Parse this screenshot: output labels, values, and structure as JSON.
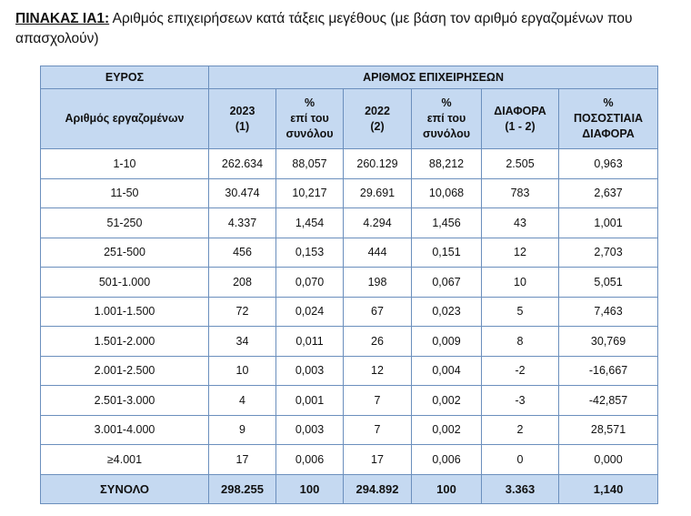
{
  "caption": {
    "code": "ΠΙΝΑΚΑΣ ΙΑ1:",
    "text": " Αριθμός επιχειρήσεων κατά τάξεις μεγέθους (με βάση τον αριθμό εργαζομένων που απασχολούν)"
  },
  "table": {
    "group_headers": {
      "range": "ΕΥΡΟΣ",
      "businesses": "ΑΡΙΘΜΟΣ ΕΠΙΧΕΙΡΗΣΕΩΝ"
    },
    "columns": {
      "employees": "Αριθμός εργαζομένων",
      "y2023_year": "2023",
      "y2023_ref": "(1)",
      "pct_label": "%",
      "pct_sub1": "επί του",
      "pct_sub2": "συνόλου",
      "y2022_year": "2022",
      "y2022_ref": "(2)",
      "diff_label": "ΔΙΑΦΟΡΑ",
      "diff_ref": "(1 - 2)",
      "pctdiff_label": "%",
      "pctdiff_sub1": "ΠΟΣΟΣΤΙΑΙΑ",
      "pctdiff_sub2": "ΔΙΑΦΟΡΑ"
    },
    "rows": [
      [
        "1-10",
        "262.634",
        "88,057",
        "260.129",
        "88,212",
        "2.505",
        "0,963"
      ],
      [
        "11-50",
        "30.474",
        "10,217",
        "29.691",
        "10,068",
        "783",
        "2,637"
      ],
      [
        "51-250",
        "4.337",
        "1,454",
        "4.294",
        "1,456",
        "43",
        "1,001"
      ],
      [
        "251-500",
        "456",
        "0,153",
        "444",
        "0,151",
        "12",
        "2,703"
      ],
      [
        "501-1.000",
        "208",
        "0,070",
        "198",
        "0,067",
        "10",
        "5,051"
      ],
      [
        "1.001-1.500",
        "72",
        "0,024",
        "67",
        "0,023",
        "5",
        "7,463"
      ],
      [
        "1.501-2.000",
        "34",
        "0,011",
        "26",
        "0,009",
        "8",
        "30,769"
      ],
      [
        "2.001-2.500",
        "10",
        "0,003",
        "12",
        "0,004",
        "-2",
        "-16,667"
      ],
      [
        "2.501-3.000",
        "4",
        "0,001",
        "7",
        "0,002",
        "-3",
        "-42,857"
      ],
      [
        "3.001-4.000",
        "9",
        "0,003",
        "7",
        "0,002",
        "2",
        "28,571"
      ],
      [
        "≥4.001",
        "17",
        "0,006",
        "17",
        "0,006",
        "0",
        "0,000"
      ]
    ],
    "total": [
      "ΣΥΝΟΛΟ",
      "298.255",
      "100",
      "294.892",
      "100",
      "3.363",
      "1,140"
    ]
  }
}
